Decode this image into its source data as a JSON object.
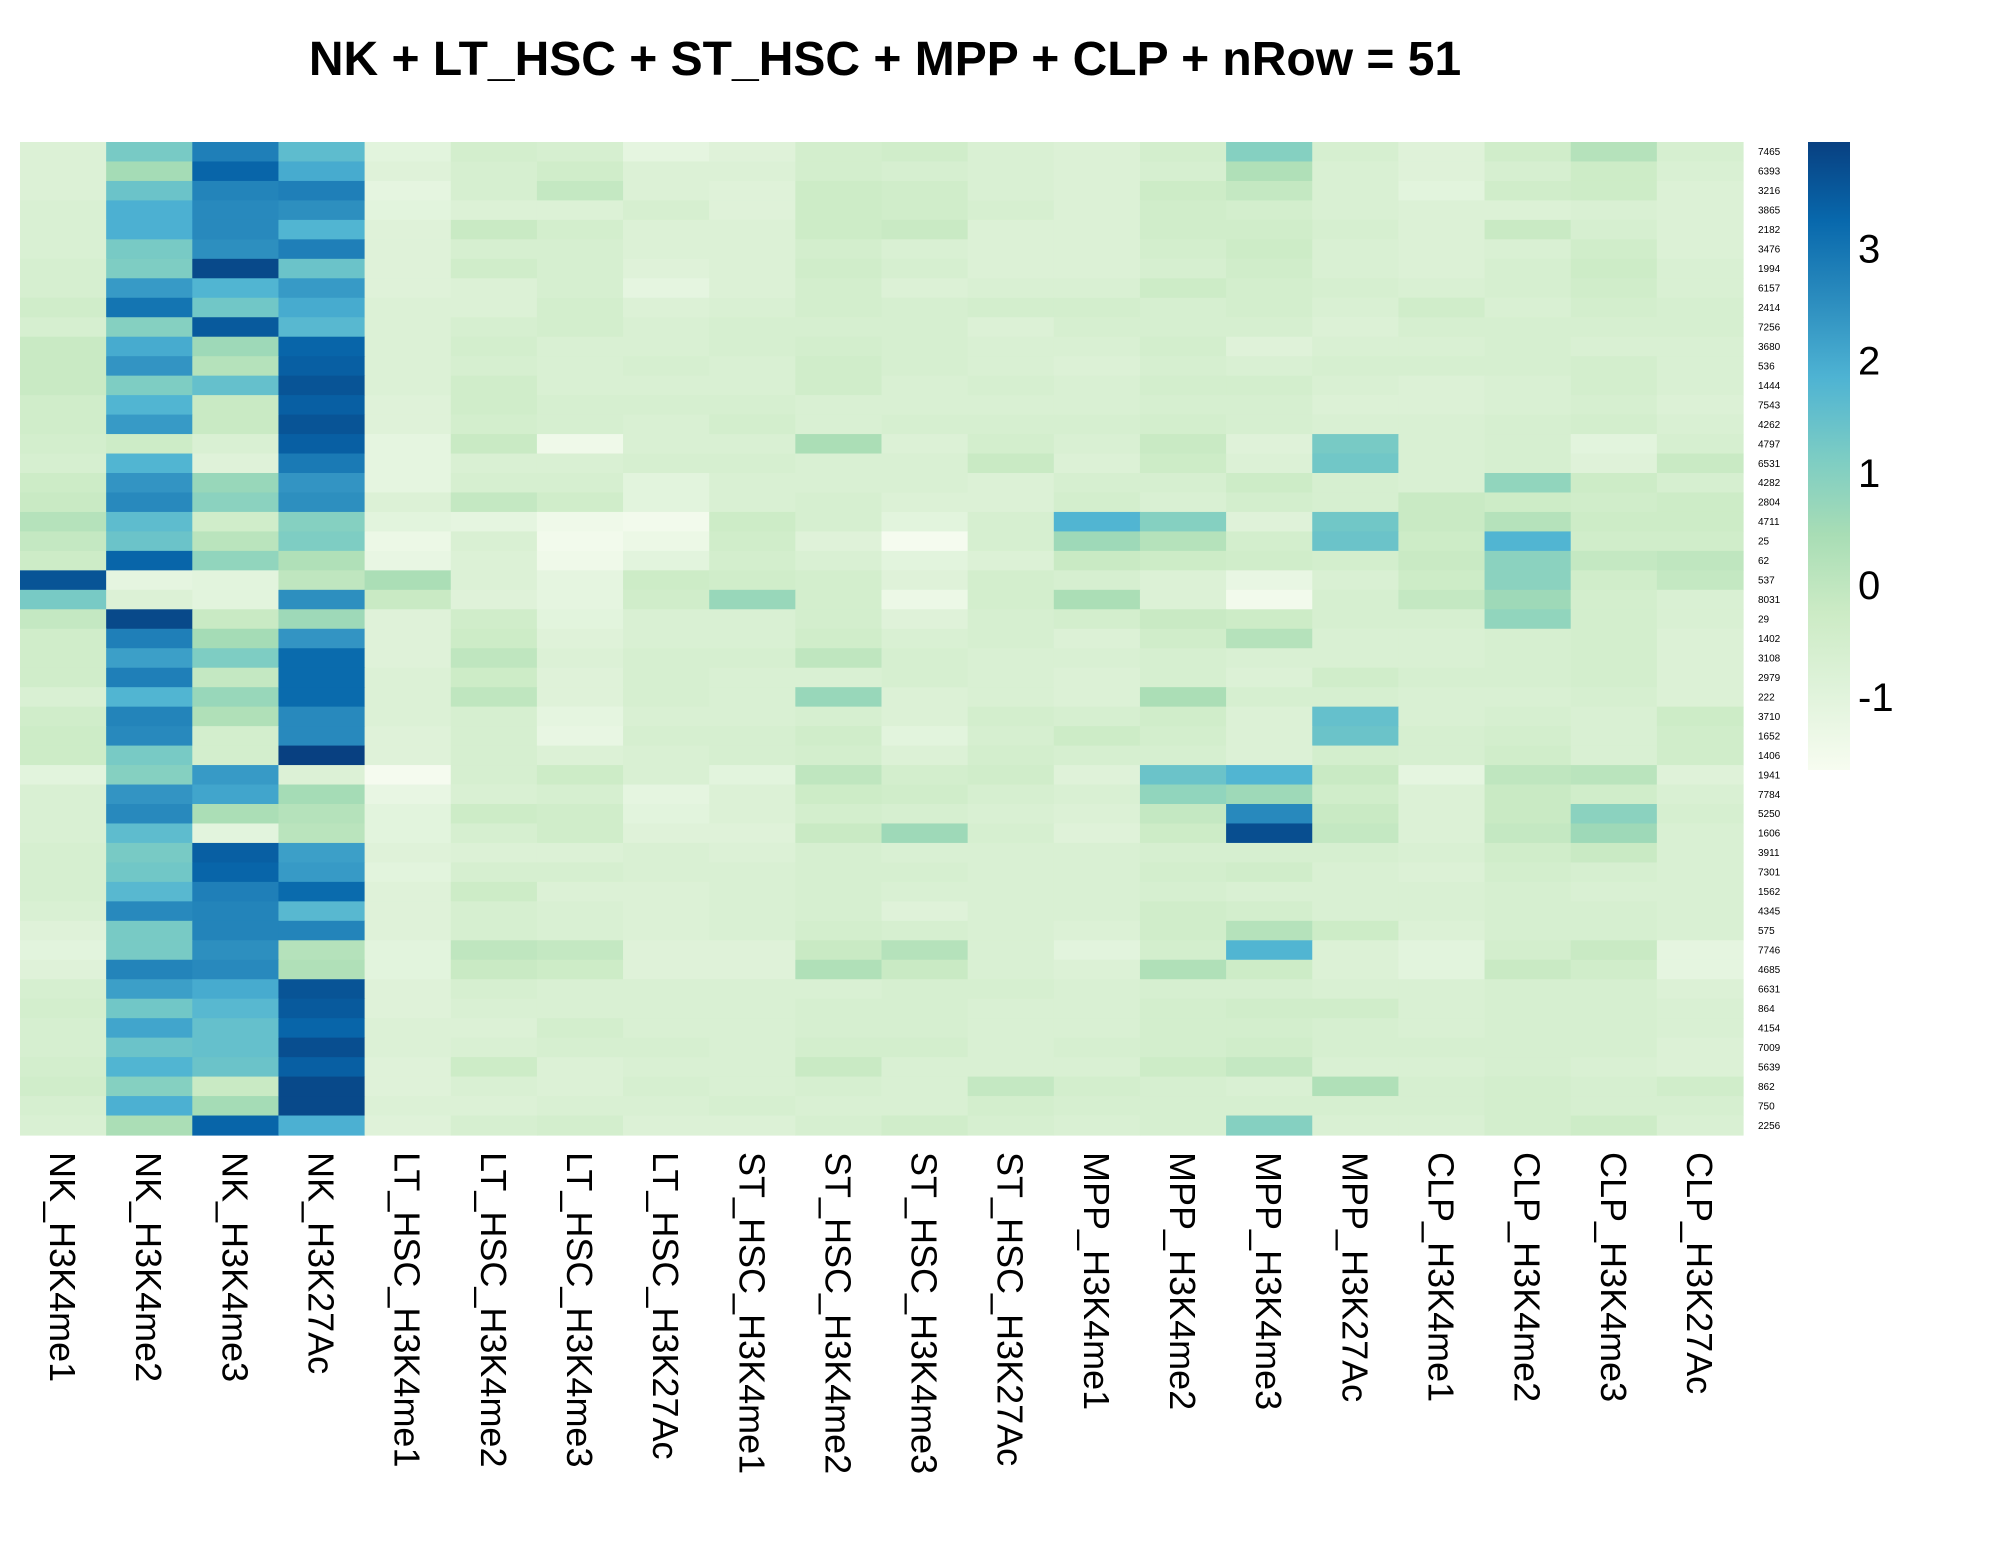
{
  "chart_data": {
    "type": "heatmap",
    "title": "NK + LT_HSC + ST_HSC + MPP + CLP + nRow = 51",
    "columns": [
      "NK_H3K4me1",
      "NK_H3K4me2",
      "NK_H3K4me3",
      "NK_H3K27Ac",
      "LT_HSC_H3K4me1",
      "LT_HSC_H3K4me2",
      "LT_HSC_H3K4me3",
      "LT_HSC_H3K27Ac",
      "ST_HSC_H3K4me1",
      "ST_HSC_H3K4me2",
      "ST_HSC_H3K4me3",
      "ST_HSC_H3K27Ac",
      "MPP_H3K4me1",
      "MPP_H3K4me2",
      "MPP_H3K4me3",
      "MPP_H3K27Ac",
      "CLP_H3K4me1",
      "CLP_H3K4me2",
      "CLP_H3K4me3",
      "CLP_H3K27Ac"
    ],
    "rows": [
      "7465",
      "6393",
      "3216",
      "3865",
      "2182",
      "3476",
      "1994",
      "6157",
      "2414",
      "7256",
      "3680",
      "536",
      "1444",
      "7543",
      "4262",
      "4797",
      "6531",
      "4282",
      "2804",
      "4711",
      "25",
      "62",
      "537",
      "8031",
      "29",
      "1402",
      "3108",
      "2979",
      "222",
      "3710",
      "1652",
      "1406",
      "1941",
      "7784",
      "5250",
      "1606",
      "3911",
      "7301",
      "1562",
      "4345",
      "575",
      "7746",
      "4685",
      "6631",
      "864",
      "4154",
      "7009",
      "5639",
      "862",
      "750",
      "2256"
    ],
    "values": [
      [
        -0.8,
        1.2,
        2.8,
        1.6,
        -1.0,
        -0.5,
        -0.6,
        -1.1,
        -0.9,
        -0.5,
        -0.4,
        -0.7,
        -0.8,
        -0.5,
        1.0,
        -0.6,
        -0.9,
        -0.4,
        0.2,
        -0.6
      ],
      [
        -0.8,
        0.5,
        3.3,
        2.0,
        -0.9,
        -0.6,
        -0.4,
        -0.8,
        -0.8,
        -0.5,
        -0.6,
        -0.7,
        -0.8,
        -0.6,
        0.3,
        -0.7,
        -0.9,
        -0.6,
        -0.3,
        -0.7
      ],
      [
        -0.8,
        1.4,
        2.7,
        2.8,
        -1.1,
        -0.6,
        -0.1,
        -0.8,
        -0.9,
        -0.3,
        -0.4,
        -0.7,
        -0.8,
        -0.3,
        -0.1,
        -0.7,
        -1.0,
        -0.4,
        -0.3,
        -0.8
      ],
      [
        -0.7,
        1.9,
        2.6,
        2.5,
        -1.0,
        -0.8,
        -0.8,
        -0.6,
        -0.9,
        -0.3,
        -0.4,
        -0.6,
        -0.8,
        -0.4,
        -0.5,
        -0.7,
        -0.8,
        -0.8,
        -0.7,
        -0.8
      ],
      [
        -0.7,
        1.9,
        2.6,
        1.8,
        -0.9,
        -0.2,
        -0.5,
        -0.8,
        -0.8,
        -0.3,
        -0.2,
        -0.8,
        -0.8,
        -0.4,
        -0.4,
        -0.6,
        -0.8,
        -0.2,
        -0.6,
        -0.8
      ],
      [
        -0.7,
        1.2,
        2.5,
        2.8,
        -0.9,
        -0.6,
        -0.6,
        -0.8,
        -0.8,
        -0.5,
        -0.7,
        -0.8,
        -0.8,
        -0.5,
        -0.3,
        -0.7,
        -0.8,
        -0.7,
        -0.4,
        -0.8
      ],
      [
        -0.6,
        1.1,
        3.8,
        1.4,
        -0.9,
        -0.4,
        -0.6,
        -0.9,
        -0.8,
        -0.4,
        -0.6,
        -0.8,
        -0.8,
        -0.6,
        -0.4,
        -0.7,
        -0.8,
        -0.6,
        -0.3,
        -0.7
      ],
      [
        -0.6,
        2.3,
        1.8,
        2.3,
        -0.9,
        -0.8,
        -0.6,
        -1.1,
        -0.8,
        -0.5,
        -0.8,
        -0.7,
        -0.7,
        -0.3,
        -0.5,
        -0.6,
        -0.7,
        -0.6,
        -0.4,
        -0.7
      ],
      [
        -0.4,
        3.0,
        1.3,
        2.0,
        -0.8,
        -0.8,
        -0.5,
        -0.8,
        -0.7,
        -0.5,
        -0.6,
        -0.5,
        -0.5,
        -0.6,
        -0.5,
        -0.7,
        -0.4,
        -0.7,
        -0.5,
        -0.6
      ],
      [
        -0.6,
        1.0,
        3.5,
        1.7,
        -0.8,
        -0.6,
        -0.5,
        -0.7,
        -0.6,
        -0.6,
        -0.6,
        -0.8,
        -0.6,
        -0.6,
        -0.6,
        -0.8,
        -0.6,
        -0.6,
        -0.6,
        -0.6
      ],
      [
        -0.2,
        2.0,
        0.6,
        3.3,
        -0.8,
        -0.5,
        -0.7,
        -0.7,
        -0.6,
        -0.5,
        -0.6,
        -0.7,
        -0.7,
        -0.5,
        -0.9,
        -0.7,
        -0.7,
        -0.6,
        -0.7,
        -0.7
      ],
      [
        -0.2,
        2.4,
        0.2,
        3.4,
        -0.8,
        -0.6,
        -0.7,
        -0.6,
        -0.7,
        -0.4,
        -0.6,
        -0.7,
        -0.8,
        -0.6,
        -0.7,
        -0.6,
        -0.6,
        -0.6,
        -0.5,
        -0.7
      ],
      [
        -0.2,
        1.1,
        1.5,
        3.6,
        -0.8,
        -0.4,
        -0.7,
        -0.7,
        -0.7,
        -0.4,
        -0.7,
        -0.6,
        -0.7,
        -0.5,
        -0.5,
        -0.7,
        -0.8,
        -0.7,
        -0.5,
        -0.7
      ],
      [
        -0.4,
        1.8,
        -0.2,
        3.4,
        -0.9,
        -0.4,
        -0.6,
        -0.6,
        -0.6,
        -0.7,
        -0.7,
        -0.7,
        -0.7,
        -0.6,
        -0.6,
        -0.8,
        -0.8,
        -0.7,
        -0.6,
        -0.8
      ],
      [
        -0.4,
        2.3,
        -0.2,
        3.6,
        -0.9,
        -0.5,
        -0.6,
        -0.7,
        -0.5,
        -0.7,
        -0.6,
        -0.6,
        -0.6,
        -0.5,
        -0.6,
        -0.7,
        -0.7,
        -0.6,
        -0.5,
        -0.7
      ],
      [
        -0.5,
        -0.3,
        -0.7,
        3.4,
        -1.1,
        -0.2,
        -1.4,
        -0.7,
        -0.7,
        0.4,
        -0.8,
        -0.5,
        -0.7,
        -0.2,
        -0.9,
        1.2,
        -0.7,
        -0.6,
        -1.0,
        -0.6
      ],
      [
        -0.6,
        1.8,
        -0.9,
        2.9,
        -1.1,
        -0.7,
        -0.7,
        -0.6,
        -0.6,
        -0.7,
        -0.7,
        -0.2,
        -0.8,
        -0.3,
        -0.8,
        1.3,
        -0.7,
        -0.6,
        -0.9,
        -0.2
      ],
      [
        -0.3,
        2.4,
        0.7,
        2.4,
        -1.1,
        -0.6,
        -0.6,
        -1.0,
        -0.7,
        -0.7,
        -0.7,
        -0.8,
        -0.6,
        -0.6,
        -0.3,
        -0.6,
        -0.7,
        0.8,
        -0.3,
        -0.6
      ],
      [
        -0.2,
        2.6,
        0.9,
        2.5,
        -0.8,
        -0.1,
        -0.4,
        -1.0,
        -0.7,
        -0.6,
        -0.8,
        -0.8,
        -0.5,
        -0.7,
        -0.5,
        -0.6,
        -0.2,
        -0.3,
        -0.4,
        -0.3
      ],
      [
        0.2,
        1.6,
        -0.4,
        1.0,
        -1.0,
        -1.1,
        -1.4,
        -1.5,
        -0.3,
        -0.6,
        -1.0,
        -0.6,
        1.8,
        1.0,
        -0.9,
        1.3,
        -0.2,
        0.2,
        -0.3,
        -0.3
      ],
      [
        -0.1,
        1.4,
        0.1,
        1.1,
        -1.3,
        -0.7,
        -1.5,
        -1.3,
        -0.4,
        -0.9,
        -1.6,
        -0.6,
        0.6,
        0.2,
        -0.5,
        1.4,
        -0.3,
        1.8,
        -0.4,
        -0.4
      ],
      [
        -0.3,
        3.3,
        0.8,
        0.3,
        -1.2,
        -0.8,
        -1.4,
        -1.0,
        -0.5,
        -0.7,
        -1.0,
        -0.8,
        -0.2,
        -0.3,
        -0.4,
        -0.5,
        -0.2,
        0.9,
        -0.1,
        0.0
      ],
      [
        3.6,
        -1.1,
        -1.0,
        0.0,
        0.4,
        -0.8,
        -1.1,
        -0.3,
        -0.4,
        -0.5,
        -0.9,
        -0.5,
        -0.6,
        -0.8,
        -1.2,
        -0.7,
        -0.3,
        0.9,
        -0.4,
        -0.1
      ],
      [
        1.2,
        -0.8,
        -1.0,
        2.5,
        -0.2,
        -0.9,
        -1.1,
        -0.4,
        0.7,
        -0.5,
        -1.3,
        -0.5,
        0.4,
        -0.8,
        -1.5,
        -0.6,
        -0.1,
        0.6,
        -0.5,
        -0.7
      ],
      [
        -0.1,
        3.8,
        -0.2,
        0.6,
        -0.9,
        -0.4,
        -1.0,
        -0.7,
        -0.7,
        -0.5,
        -0.9,
        -0.6,
        -0.5,
        -0.2,
        -0.3,
        -0.6,
        -0.6,
        0.8,
        -0.5,
        -0.7
      ],
      [
        -0.4,
        2.8,
        0.5,
        2.4,
        -0.9,
        -0.3,
        -0.9,
        -0.7,
        -0.7,
        -0.4,
        -0.7,
        -0.6,
        -0.8,
        -0.4,
        0.2,
        -0.7,
        -0.7,
        -0.6,
        -0.5,
        -0.8
      ],
      [
        -0.4,
        2.2,
        1.1,
        3.2,
        -0.9,
        0.0,
        -0.8,
        -0.6,
        -0.6,
        0.0,
        -0.6,
        -0.7,
        -0.7,
        -0.6,
        -0.7,
        -0.7,
        -0.7,
        -0.6,
        -0.5,
        -0.8
      ],
      [
        -0.4,
        2.8,
        -0.1,
        3.2,
        -0.8,
        -0.3,
        -0.9,
        -0.6,
        -0.7,
        -0.7,
        -0.6,
        -0.7,
        -0.8,
        -0.6,
        -0.8,
        -0.4,
        -0.6,
        -0.6,
        -0.5,
        -0.8
      ],
      [
        -0.7,
        1.8,
        0.7,
        3.2,
        -0.8,
        0.0,
        -0.9,
        -0.6,
        -0.7,
        0.7,
        -0.8,
        -0.7,
        -0.8,
        0.4,
        -0.6,
        -0.6,
        -0.7,
        -0.7,
        -0.6,
        -0.8
      ],
      [
        -0.4,
        2.7,
        0.3,
        2.6,
        -0.8,
        -0.6,
        -1.1,
        -0.7,
        -0.7,
        -0.6,
        -0.8,
        -0.5,
        -0.6,
        -0.4,
        -0.8,
        1.5,
        -0.7,
        -0.6,
        -0.7,
        -0.3
      ],
      [
        -0.3,
        2.6,
        -0.5,
        2.6,
        -0.9,
        -0.6,
        -1.2,
        -0.6,
        -0.6,
        -0.4,
        -1.0,
        -0.6,
        -0.3,
        -0.5,
        -0.8,
        1.4,
        -0.6,
        -0.5,
        -0.7,
        -0.4
      ],
      [
        -0.3,
        1.2,
        -0.5,
        4.0,
        -0.9,
        -0.6,
        -0.8,
        -0.7,
        -0.6,
        -0.5,
        -0.8,
        -0.5,
        -0.6,
        -0.6,
        -0.8,
        -0.5,
        -0.6,
        -0.4,
        -0.7,
        -0.4
      ],
      [
        -1.0,
        1.0,
        2.3,
        -0.8,
        -1.6,
        -0.6,
        -0.3,
        -0.7,
        -1.0,
        0.0,
        -0.5,
        -0.4,
        -0.9,
        1.4,
        1.8,
        -0.2,
        -1.1,
        0.0,
        0.1,
        -0.9
      ],
      [
        -0.7,
        2.4,
        2.1,
        0.5,
        -1.2,
        -0.7,
        -0.6,
        -1.1,
        -0.8,
        -0.3,
        -0.4,
        -0.6,
        -0.7,
        0.8,
        0.6,
        -0.4,
        -0.8,
        -0.2,
        -0.4,
        -0.7
      ],
      [
        -0.7,
        2.6,
        0.4,
        0.2,
        -1.0,
        -0.3,
        -0.4,
        -1.0,
        -0.8,
        -0.5,
        -0.6,
        -0.7,
        -0.8,
        -0.1,
        2.6,
        -0.2,
        -0.8,
        -0.2,
        0.9,
        -0.6
      ],
      [
        -0.7,
        1.6,
        -1.0,
        0.1,
        -1.0,
        -0.6,
        -0.4,
        -0.9,
        -0.9,
        -0.2,
        0.6,
        -0.6,
        -0.9,
        -0.3,
        3.7,
        -0.1,
        -0.8,
        -0.1,
        0.6,
        -0.7
      ],
      [
        -0.6,
        1.2,
        3.4,
        2.2,
        -0.9,
        -0.8,
        -0.8,
        -0.7,
        -0.8,
        -0.6,
        -0.7,
        -0.7,
        -0.7,
        -0.6,
        -0.6,
        -0.6,
        -0.7,
        -0.4,
        -0.2,
        -0.7
      ],
      [
        -0.6,
        1.3,
        3.3,
        2.3,
        -1.0,
        -0.6,
        -0.6,
        -0.7,
        -0.7,
        -0.6,
        -0.6,
        -0.7,
        -0.7,
        -0.5,
        -0.4,
        -0.7,
        -0.8,
        -0.5,
        -0.6,
        -0.7
      ],
      [
        -0.6,
        1.7,
        2.8,
        3.2,
        -0.9,
        -0.3,
        -0.8,
        -0.8,
        -0.7,
        -0.6,
        -0.7,
        -0.7,
        -0.7,
        -0.6,
        -0.7,
        -0.7,
        -0.7,
        -0.6,
        -0.7,
        -0.7
      ],
      [
        -0.7,
        2.6,
        2.7,
        1.7,
        -0.9,
        -0.6,
        -0.7,
        -0.8,
        -0.7,
        -0.6,
        -0.9,
        -0.7,
        -0.7,
        -0.4,
        -0.5,
        -0.7,
        -0.7,
        -0.6,
        -0.6,
        -0.7
      ],
      [
        -0.9,
        1.2,
        2.7,
        2.7,
        -0.9,
        -0.6,
        -0.7,
        -0.8,
        -0.7,
        -0.5,
        -0.6,
        -0.7,
        -0.8,
        -0.4,
        0.2,
        -0.3,
        -0.8,
        -0.6,
        -0.6,
        -0.7
      ],
      [
        -1.0,
        1.2,
        2.5,
        0.2,
        -1.0,
        0.0,
        -0.1,
        -0.9,
        -0.9,
        -0.2,
        0.2,
        -0.7,
        -1.0,
        -0.5,
        1.8,
        -0.8,
        -1.0,
        -0.5,
        -0.2,
        -1.1
      ],
      [
        -0.9,
        2.7,
        2.6,
        0.3,
        -1.0,
        -0.2,
        -0.3,
        -0.9,
        -0.9,
        0.3,
        -0.2,
        -0.7,
        -0.8,
        0.3,
        -0.3,
        -0.8,
        -1.0,
        -0.2,
        -0.4,
        -1.1
      ],
      [
        -0.6,
        2.2,
        2.0,
        3.6,
        -0.9,
        -0.6,
        -0.7,
        -0.7,
        -0.7,
        -0.7,
        -0.6,
        -0.6,
        -0.7,
        -0.6,
        -0.6,
        -0.7,
        -0.7,
        -0.6,
        -0.6,
        -0.8
      ],
      [
        -0.5,
        1.3,
        1.7,
        3.5,
        -0.9,
        -0.7,
        -0.7,
        -0.7,
        -0.7,
        -0.6,
        -0.6,
        -0.7,
        -0.7,
        -0.5,
        -0.4,
        -0.4,
        -0.7,
        -0.6,
        -0.6,
        -0.7
      ],
      [
        -0.6,
        2.1,
        1.5,
        3.3,
        -0.8,
        -0.8,
        -0.5,
        -0.7,
        -0.7,
        -0.6,
        -0.6,
        -0.7,
        -0.7,
        -0.5,
        -0.5,
        -0.6,
        -0.7,
        -0.6,
        -0.6,
        -0.7
      ],
      [
        -0.6,
        1.4,
        1.5,
        3.7,
        -0.8,
        -0.7,
        -0.6,
        -0.6,
        -0.7,
        -0.5,
        -0.5,
        -0.7,
        -0.6,
        -0.5,
        -0.4,
        -0.6,
        -0.6,
        -0.6,
        -0.6,
        -0.8
      ],
      [
        -0.5,
        1.8,
        1.4,
        3.4,
        -0.9,
        -0.3,
        -0.8,
        -0.7,
        -0.7,
        -0.2,
        -0.7,
        -0.7,
        -0.7,
        -0.3,
        -0.1,
        -0.7,
        -0.7,
        -0.6,
        -0.7,
        -0.8
      ],
      [
        -0.4,
        1.0,
        -0.2,
        3.8,
        -0.9,
        -0.7,
        -0.8,
        -0.6,
        -0.7,
        -0.6,
        -0.7,
        -0.1,
        -0.5,
        -0.6,
        -0.7,
        0.3,
        -0.6,
        -0.5,
        -0.6,
        -0.4
      ],
      [
        -0.6,
        1.9,
        0.5,
        3.8,
        -0.8,
        -0.8,
        -0.7,
        -0.7,
        -0.6,
        -0.7,
        -0.7,
        -0.5,
        -0.6,
        -0.6,
        -0.6,
        -0.6,
        -0.6,
        -0.5,
        -0.6,
        -0.6
      ],
      [
        -0.7,
        0.4,
        3.3,
        1.9,
        -0.9,
        -0.6,
        -0.5,
        -0.8,
        -0.8,
        -0.6,
        -0.4,
        -0.6,
        -0.7,
        -0.6,
        1.0,
        -0.7,
        -0.7,
        -0.5,
        -0.3,
        -0.7
      ]
    ],
    "legend": {
      "ticks": [
        3,
        2,
        1,
        0,
        -1
      ],
      "range": [
        -1.65,
        3.95
      ],
      "colors": [
        "#f7fcf0",
        "#e0f3db",
        "#ccebc5",
        "#a8ddb5",
        "#7bccc4",
        "#4eb3d3",
        "#2b8cbe",
        "#0868ac",
        "#084081"
      ]
    }
  }
}
